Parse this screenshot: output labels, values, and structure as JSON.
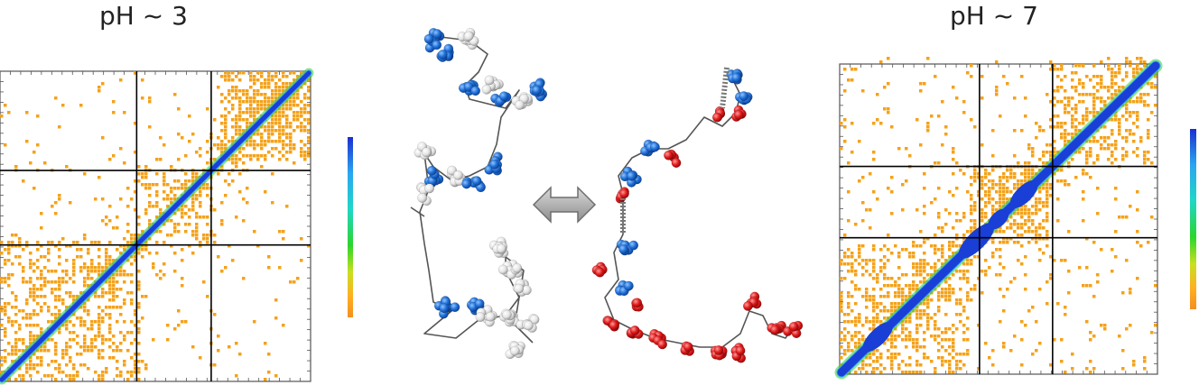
{
  "panels": [
    {
      "id": "left",
      "label": "pH ~ 3"
    },
    {
      "id": "right",
      "label": "pH ~ 7"
    }
  ],
  "center": {
    "arrow_icon": "double-headed-arrow-icon",
    "left_structure_icon": "protein-chain-blue-white-icon",
    "right_structure_icon": "protein-chain-blue-red-icon"
  },
  "colors": {
    "diagonal": "#1a3fd6",
    "near_diagonal": "#3aa0ff",
    "contact": "#f4a21a",
    "grid_line": "#000000",
    "frame": "#555555",
    "bead_blue": "#1f6fd8",
    "bead_white": "#e8e8e8",
    "bead_red": "#e01919",
    "arrow_fill": "#b0b0b0",
    "colorbar": [
      "#1a2fd0",
      "#2aa6f0",
      "#1fd7c8",
      "#2bd62b",
      "#c8e020",
      "#ffb020",
      "#f39020"
    ]
  }
}
